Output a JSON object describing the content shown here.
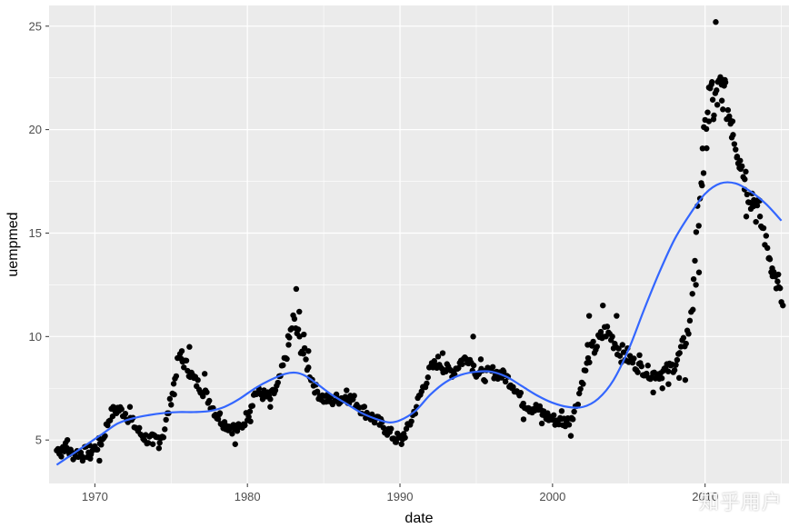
{
  "chart_data": {
    "type": "scatter",
    "xlabel": "date",
    "ylabel": "uempmed",
    "xlim": [
      1967.0,
      2015.5
    ],
    "ylim": [
      2.9,
      26.0
    ],
    "x_ticks": [
      1970,
      1980,
      1990,
      2000,
      2010
    ],
    "x_tick_labels": [
      "1970",
      "1980",
      "1990",
      "2000",
      "2010"
    ],
    "y_ticks": [
      5,
      10,
      15,
      20,
      25
    ],
    "y_tick_labels": [
      "5",
      "10",
      "15",
      "20",
      "25"
    ],
    "grid": true,
    "colors": {
      "panel": "#ebebeb",
      "grid": "#ffffff",
      "points": "#000000",
      "smooth": "#3366ff"
    },
    "points_anchor": [
      [
        1967.5,
        4.5
      ],
      [
        1968.0,
        4.7
      ],
      [
        1968.5,
        4.3
      ],
      [
        1969.0,
        4.4
      ],
      [
        1969.5,
        4.4
      ],
      [
        1970.0,
        4.6
      ],
      [
        1970.5,
        5.0
      ],
      [
        1971.0,
        6.2
      ],
      [
        1971.5,
        6.5
      ],
      [
        1972.0,
        6.3
      ],
      [
        1972.5,
        5.8
      ],
      [
        1973.0,
        5.3
      ],
      [
        1973.5,
        5.0
      ],
      [
        1974.0,
        5.0
      ],
      [
        1974.5,
        5.3
      ],
      [
        1975.0,
        7.0
      ],
      [
        1975.5,
        9.0
      ],
      [
        1976.0,
        8.6
      ],
      [
        1976.5,
        7.9
      ],
      [
        1977.0,
        7.5
      ],
      [
        1977.5,
        6.9
      ],
      [
        1978.0,
        6.2
      ],
      [
        1978.5,
        5.8
      ],
      [
        1979.0,
        5.6
      ],
      [
        1979.5,
        5.5
      ],
      [
        1980.0,
        6.2
      ],
      [
        1980.5,
        7.3
      ],
      [
        1981.0,
        7.2
      ],
      [
        1981.5,
        7.0
      ],
      [
        1982.0,
        7.6
      ],
      [
        1982.5,
        9.0
      ],
      [
        1983.0,
        10.8
      ],
      [
        1983.5,
        9.6
      ],
      [
        1984.0,
        8.4
      ],
      [
        1984.5,
        7.4
      ],
      [
        1985.0,
        7.0
      ],
      [
        1985.5,
        6.9
      ],
      [
        1986.0,
        7.0
      ],
      [
        1986.5,
        7.1
      ],
      [
        1987.0,
        6.9
      ],
      [
        1987.5,
        6.5
      ],
      [
        1988.0,
        6.2
      ],
      [
        1988.5,
        5.9
      ],
      [
        1989.0,
        5.6
      ],
      [
        1989.5,
        5.2
      ],
      [
        1990.0,
        5.0
      ],
      [
        1990.5,
        5.5
      ],
      [
        1991.0,
        6.5
      ],
      [
        1991.5,
        7.5
      ],
      [
        1992.0,
        8.4
      ],
      [
        1992.5,
        8.8
      ],
      [
        1993.0,
        8.4
      ],
      [
        1993.5,
        8.3
      ],
      [
        1994.0,
        8.8
      ],
      [
        1994.5,
        9.0
      ],
      [
        1995.0,
        8.3
      ],
      [
        1995.5,
        8.1
      ],
      [
        1996.0,
        8.3
      ],
      [
        1996.5,
        8.2
      ],
      [
        1997.0,
        8.0
      ],
      [
        1997.5,
        7.6
      ],
      [
        1998.0,
        6.9
      ],
      [
        1998.5,
        6.6
      ],
      [
        1999.0,
        6.5
      ],
      [
        1999.5,
        6.2
      ],
      [
        2000.0,
        6.0
      ],
      [
        2000.5,
        5.9
      ],
      [
        2001.0,
        5.9
      ],
      [
        2001.5,
        6.5
      ],
      [
        2002.0,
        8.0
      ],
      [
        2002.5,
        9.2
      ],
      [
        2003.0,
        9.7
      ],
      [
        2003.5,
        10.3
      ],
      [
        2004.0,
        9.8
      ],
      [
        2004.5,
        9.2
      ],
      [
        2005.0,
        9.0
      ],
      [
        2005.5,
        8.6
      ],
      [
        2006.0,
        8.4
      ],
      [
        2006.5,
        8.2
      ],
      [
        2007.0,
        8.2
      ],
      [
        2007.5,
        8.4
      ],
      [
        2008.0,
        8.6
      ],
      [
        2008.5,
        9.4
      ],
      [
        2009.0,
        10.5
      ],
      [
        2009.5,
        15.5
      ],
      [
        2010.0,
        20.0
      ],
      [
        2010.3,
        22.0
      ],
      [
        2010.6,
        21.0
      ],
      [
        2011.0,
        22.2
      ],
      [
        2011.5,
        21.0
      ],
      [
        2012.0,
        19.5
      ],
      [
        2012.5,
        18.0
      ],
      [
        2013.0,
        16.9
      ],
      [
        2013.5,
        16.0
      ],
      [
        2014.0,
        14.5
      ],
      [
        2014.5,
        13.0
      ],
      [
        2015.0,
        11.8
      ]
    ],
    "scatter_extra": [
      [
        1967.8,
        4.2
      ],
      [
        1968.2,
        5.0
      ],
      [
        1969.2,
        4.0
      ],
      [
        1969.7,
        4.1
      ],
      [
        1970.3,
        4.0
      ],
      [
        1971.2,
        6.6
      ],
      [
        1971.6,
        6.5
      ],
      [
        1972.3,
        6.6
      ],
      [
        1973.8,
        4.8
      ],
      [
        1974.2,
        4.6
      ],
      [
        1975.2,
        7.2
      ],
      [
        1975.7,
        9.3
      ],
      [
        1976.2,
        9.5
      ],
      [
        1977.2,
        8.2
      ],
      [
        1978.2,
        6.3
      ],
      [
        1979.2,
        4.8
      ],
      [
        1980.2,
        5.9
      ],
      [
        1981.5,
        6.6
      ],
      [
        1982.7,
        9.6
      ],
      [
        1983.2,
        12.3
      ],
      [
        1983.4,
        11.2
      ],
      [
        1983.7,
        10.1
      ],
      [
        1984.0,
        9.3
      ],
      [
        1986.5,
        7.4
      ],
      [
        1989.7,
        4.9
      ],
      [
        1990.1,
        4.8
      ],
      [
        1992.8,
        9.2
      ],
      [
        1994.8,
        10.0
      ],
      [
        1995.3,
        8.9
      ],
      [
        1996.8,
        8.3
      ],
      [
        1998.1,
        6.0
      ],
      [
        1999.3,
        5.8
      ],
      [
        2000.6,
        6.4
      ],
      [
        2001.2,
        5.2
      ],
      [
        2002.3,
        9.6
      ],
      [
        2002.4,
        11.0
      ],
      [
        2003.3,
        11.5
      ],
      [
        2004.2,
        11.0
      ],
      [
        2005.7,
        9.1
      ],
      [
        2006.3,
        8.0
      ],
      [
        2006.6,
        7.3
      ],
      [
        2007.2,
        7.5
      ],
      [
        2007.6,
        7.7
      ],
      [
        2008.3,
        8.0
      ],
      [
        2008.7,
        7.9
      ],
      [
        2009.2,
        11.3
      ],
      [
        2009.4,
        12.5
      ],
      [
        2009.6,
        13.1
      ],
      [
        2009.8,
        17.3
      ],
      [
        2009.9,
        17.9
      ],
      [
        2010.1,
        19.1
      ],
      [
        2010.25,
        20.4
      ],
      [
        2010.45,
        22.3
      ],
      [
        2010.55,
        20.5
      ],
      [
        2010.7,
        25.2
      ],
      [
        2010.8,
        21.2
      ],
      [
        2011.1,
        21.4
      ],
      [
        2011.2,
        22.4
      ],
      [
        2011.3,
        22.4
      ],
      [
        2011.6,
        20.5
      ],
      [
        2011.8,
        20.4
      ],
      [
        2012.1,
        18.7
      ],
      [
        2012.3,
        18.5
      ],
      [
        2012.6,
        17.6
      ],
      [
        2012.7,
        15.8
      ],
      [
        2013.1,
        16.4
      ],
      [
        2013.2,
        16.6
      ],
      [
        2013.6,
        15.8
      ],
      [
        2014.2,
        13.8
      ],
      [
        2014.4,
        13.3
      ],
      [
        2014.6,
        12.9
      ],
      [
        2014.8,
        13.0
      ],
      [
        2015.1,
        11.5
      ]
    ],
    "smooth_anchor": [
      [
        1967.5,
        3.8
      ],
      [
        1968.5,
        4.3
      ],
      [
        1969.5,
        4.8
      ],
      [
        1970.5,
        5.3
      ],
      [
        1971.5,
        5.8
      ],
      [
        1972.5,
        6.05
      ],
      [
        1973.5,
        6.2
      ],
      [
        1974.5,
        6.3
      ],
      [
        1975.5,
        6.35
      ],
      [
        1976.5,
        6.35
      ],
      [
        1977.5,
        6.4
      ],
      [
        1978.5,
        6.6
      ],
      [
        1979.5,
        7.0
      ],
      [
        1980.5,
        7.5
      ],
      [
        1981.5,
        7.9
      ],
      [
        1982.5,
        8.2
      ],
      [
        1983.2,
        8.25
      ],
      [
        1983.8,
        8.1
      ],
      [
        1984.5,
        7.75
      ],
      [
        1985.5,
        7.2
      ],
      [
        1986.5,
        6.75
      ],
      [
        1987.5,
        6.3
      ],
      [
        1988.5,
        6.0
      ],
      [
        1989.3,
        5.85
      ],
      [
        1990.0,
        5.95
      ],
      [
        1991.0,
        6.4
      ],
      [
        1992.0,
        7.2
      ],
      [
        1993.0,
        7.8
      ],
      [
        1994.0,
        8.15
      ],
      [
        1995.0,
        8.3
      ],
      [
        1996.0,
        8.3
      ],
      [
        1997.0,
        8.05
      ],
      [
        1998.0,
        7.6
      ],
      [
        1999.0,
        7.15
      ],
      [
        2000.0,
        6.8
      ],
      [
        2001.0,
        6.6
      ],
      [
        2002.0,
        6.6
      ],
      [
        2003.0,
        7.0
      ],
      [
        2004.0,
        7.9
      ],
      [
        2005.0,
        9.4
      ],
      [
        2006.0,
        11.3
      ],
      [
        2007.0,
        13.1
      ],
      [
        2008.0,
        14.7
      ],
      [
        2009.0,
        15.9
      ],
      [
        2010.0,
        16.9
      ],
      [
        2011.0,
        17.4
      ],
      [
        2012.0,
        17.4
      ],
      [
        2013.0,
        17.0
      ],
      [
        2014.0,
        16.4
      ],
      [
        2015.0,
        15.6
      ]
    ]
  },
  "watermark": "知乎用户"
}
